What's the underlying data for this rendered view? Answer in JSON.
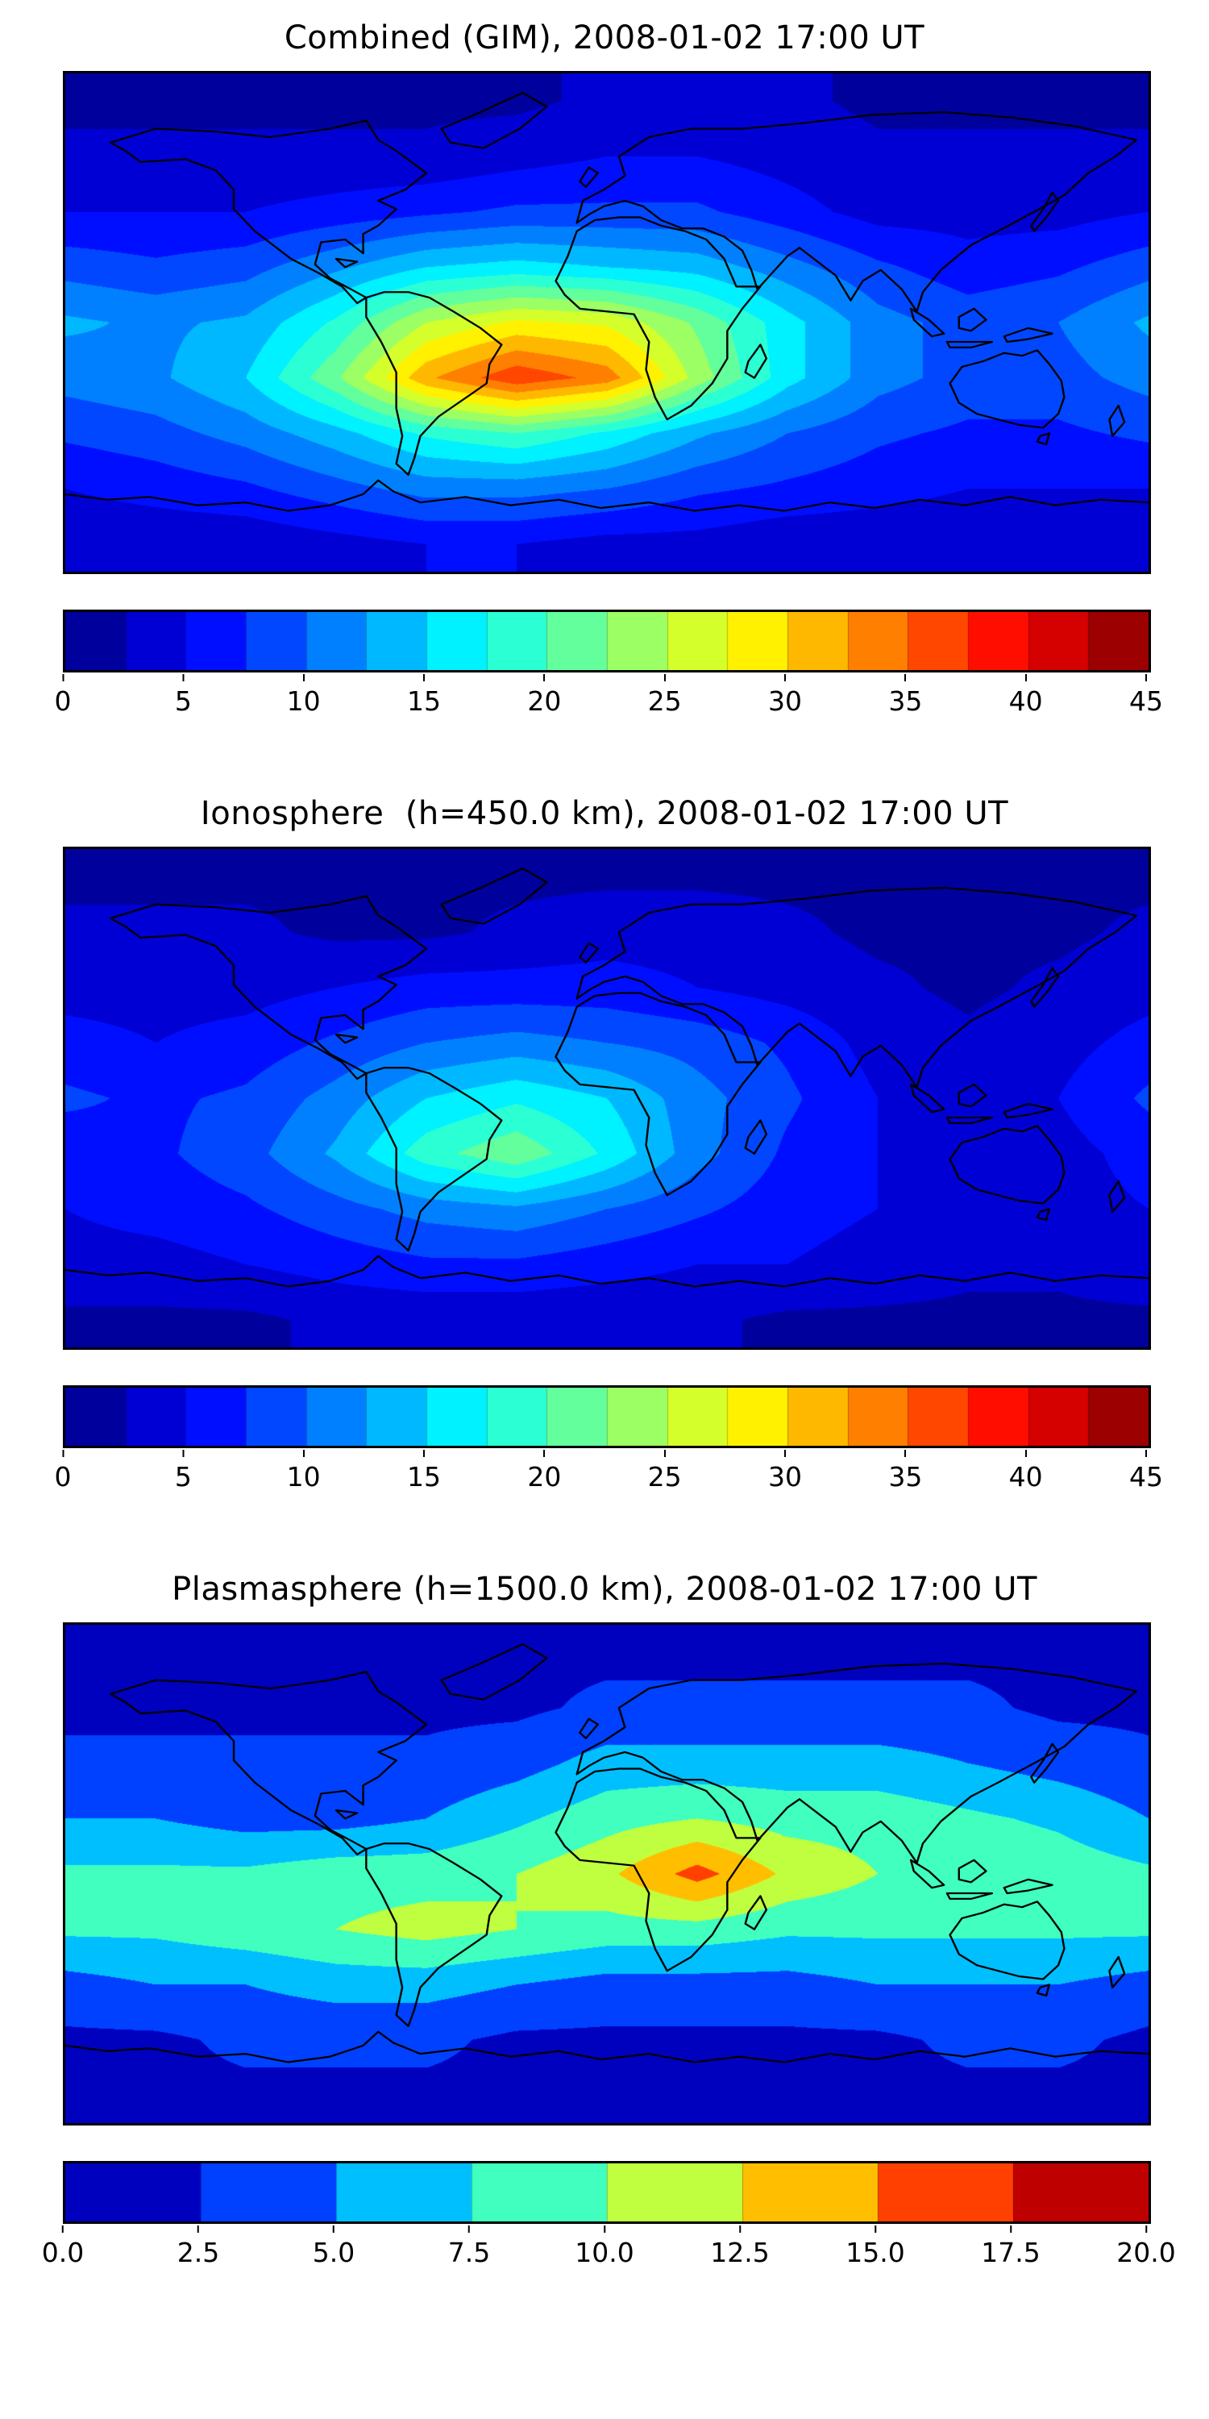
{
  "figure": {
    "background": "#ffffff",
    "text_color": "#000000"
  },
  "chart_data": [
    {
      "type": "heatmap",
      "title": "Combined (GIM), 2008-01-02 17:00 UT",
      "colormap": "jet",
      "style": "filled-contour world map with black coastlines",
      "projection": "equirectangular",
      "x_range": [
        -180,
        180
      ],
      "y_range": [
        -90,
        90
      ],
      "vmin": 0,
      "vmax": 45,
      "level_step": 2.5,
      "colorbar_ticks": [
        "0",
        "5",
        "10",
        "15",
        "20",
        "25",
        "30",
        "35",
        "40",
        "45"
      ],
      "colorbar_tick_values": [
        0,
        5,
        10,
        15,
        20,
        25,
        30,
        35,
        40,
        45
      ],
      "x_lon": [
        -180,
        -150,
        -120,
        -90,
        -60,
        -30,
        0,
        30,
        60,
        90,
        120,
        150,
        180
      ],
      "y_lat": [
        80,
        60,
        40,
        20,
        0,
        -20,
        -40,
        -60,
        -80
      ],
      "values": [
        [
          2,
          2,
          2,
          2,
          2,
          2,
          3,
          3,
          3,
          2,
          2,
          2,
          2
        ],
        [
          3,
          3,
          3,
          3,
          3,
          4,
          5,
          5,
          4,
          3,
          3,
          3,
          3
        ],
        [
          5,
          5,
          5,
          6,
          7,
          8,
          8,
          8,
          6,
          4,
          4,
          4,
          5
        ],
        [
          9,
          8,
          9,
          12,
          15,
          16,
          15,
          14,
          11,
          8,
          6,
          7,
          9
        ],
        [
          13,
          12,
          13,
          18,
          25,
          28,
          27,
          22,
          16,
          11,
          9,
          10,
          13
        ],
        [
          11,
          12,
          15,
          22,
          32,
          37,
          34,
          24,
          16,
          11,
          9,
          9,
          11
        ],
        [
          8,
          9,
          11,
          14,
          18,
          20,
          17,
          13,
          10,
          8,
          7,
          7,
          8
        ],
        [
          5,
          6,
          7,
          9,
          11,
          11,
          10,
          8,
          7,
          6,
          5,
          5,
          5
        ],
        [
          3,
          3,
          3,
          4,
          5,
          5,
          4,
          4,
          3,
          3,
          3,
          3,
          3
        ]
      ]
    },
    {
      "type": "heatmap",
      "title": "Ionosphere  (h=450.0 km), 2008-01-02 17:00 UT",
      "colormap": "jet",
      "style": "filled-contour world map with black coastlines",
      "projection": "equirectangular",
      "x_range": [
        -180,
        180
      ],
      "y_range": [
        -90,
        90
      ],
      "vmin": 0,
      "vmax": 45,
      "level_step": 2.5,
      "colorbar_ticks": [
        "0",
        "5",
        "10",
        "15",
        "20",
        "25",
        "30",
        "35",
        "40",
        "45"
      ],
      "colorbar_tick_values": [
        0,
        5,
        10,
        15,
        20,
        25,
        30,
        35,
        40,
        45
      ],
      "x_lon": [
        -180,
        -150,
        -120,
        -90,
        -60,
        -30,
        0,
        30,
        60,
        90,
        120,
        150,
        180
      ],
      "y_lat": [
        80,
        60,
        40,
        20,
        0,
        -20,
        -40,
        -60,
        -80
      ],
      "values": [
        [
          2,
          2,
          2,
          2,
          2,
          2,
          2,
          2,
          2,
          2,
          2,
          2,
          2
        ],
        [
          3,
          3,
          3,
          2,
          2,
          3,
          4,
          4,
          3,
          2,
          2,
          2,
          3
        ],
        [
          4,
          4,
          4,
          5,
          6,
          6,
          6,
          5,
          4,
          3,
          2,
          3,
          4
        ],
        [
          6,
          5,
          6,
          8,
          10,
          11,
          10,
          9,
          7,
          4,
          3,
          4,
          6
        ],
        [
          8,
          7,
          8,
          11,
          15,
          17,
          15,
          11,
          8,
          5,
          4,
          5,
          8
        ],
        [
          6,
          7,
          9,
          13,
          19,
          22,
          17,
          11,
          7,
          5,
          4,
          4,
          6
        ],
        [
          5,
          6,
          7,
          9,
          11,
          12,
          10,
          8,
          6,
          5,
          4,
          4,
          5
        ],
        [
          4,
          4,
          5,
          6,
          7,
          7,
          6,
          5,
          5,
          4,
          3,
          3,
          4
        ],
        [
          2,
          2,
          2,
          3,
          3,
          3,
          3,
          3,
          2,
          2,
          2,
          2,
          2
        ]
      ]
    },
    {
      "type": "heatmap",
      "title": "Plasmasphere (h=1500.0 km), 2008-01-02 17:00 UT",
      "colormap": "jet",
      "style": "filled-contour world map with black coastlines",
      "projection": "equirectangular",
      "x_range": [
        -180,
        180
      ],
      "y_range": [
        -90,
        90
      ],
      "vmin": 0,
      "vmax": 20,
      "level_step": 2.5,
      "colorbar_ticks": [
        "0.0",
        "2.5",
        "5.0",
        "7.5",
        "10.0",
        "12.5",
        "15.0",
        "17.5",
        "20.0"
      ],
      "colorbar_tick_values": [
        0,
        2.5,
        5,
        7.5,
        10,
        12.5,
        15,
        17.5,
        20
      ],
      "x_lon": [
        -180,
        -150,
        -120,
        -90,
        -60,
        -30,
        0,
        30,
        60,
        90,
        120,
        150,
        180
      ],
      "y_lat": [
        80,
        60,
        40,
        20,
        0,
        -20,
        -40,
        -60,
        -80
      ],
      "values": [
        [
          2,
          2,
          2,
          2,
          2,
          2,
          2,
          2,
          2,
          2,
          2,
          2,
          2
        ],
        [
          2,
          2,
          2,
          2,
          2,
          2,
          3,
          3,
          3,
          3,
          3,
          2,
          2
        ],
        [
          3,
          3,
          3,
          3,
          3,
          4,
          6,
          6,
          6,
          6,
          5,
          4,
          3
        ],
        [
          5,
          5,
          4,
          4,
          5,
          7,
          9,
          10,
          9,
          9,
          8,
          7,
          5
        ],
        [
          8,
          8,
          8,
          9,
          9,
          10,
          12,
          16,
          12,
          10,
          10,
          9,
          8
        ],
        [
          8,
          8,
          9,
          10,
          11,
          10,
          9,
          9,
          8,
          8,
          8,
          8,
          8
        ],
        [
          4,
          5,
          5,
          6,
          6,
          5,
          4,
          4,
          4,
          5,
          5,
          5,
          4
        ],
        [
          2,
          2,
          3,
          3,
          3,
          2,
          2,
          2,
          2,
          2,
          3,
          3,
          2
        ],
        [
          2,
          2,
          2,
          2,
          2,
          2,
          2,
          2,
          2,
          2,
          2,
          2,
          2
        ]
      ]
    }
  ]
}
